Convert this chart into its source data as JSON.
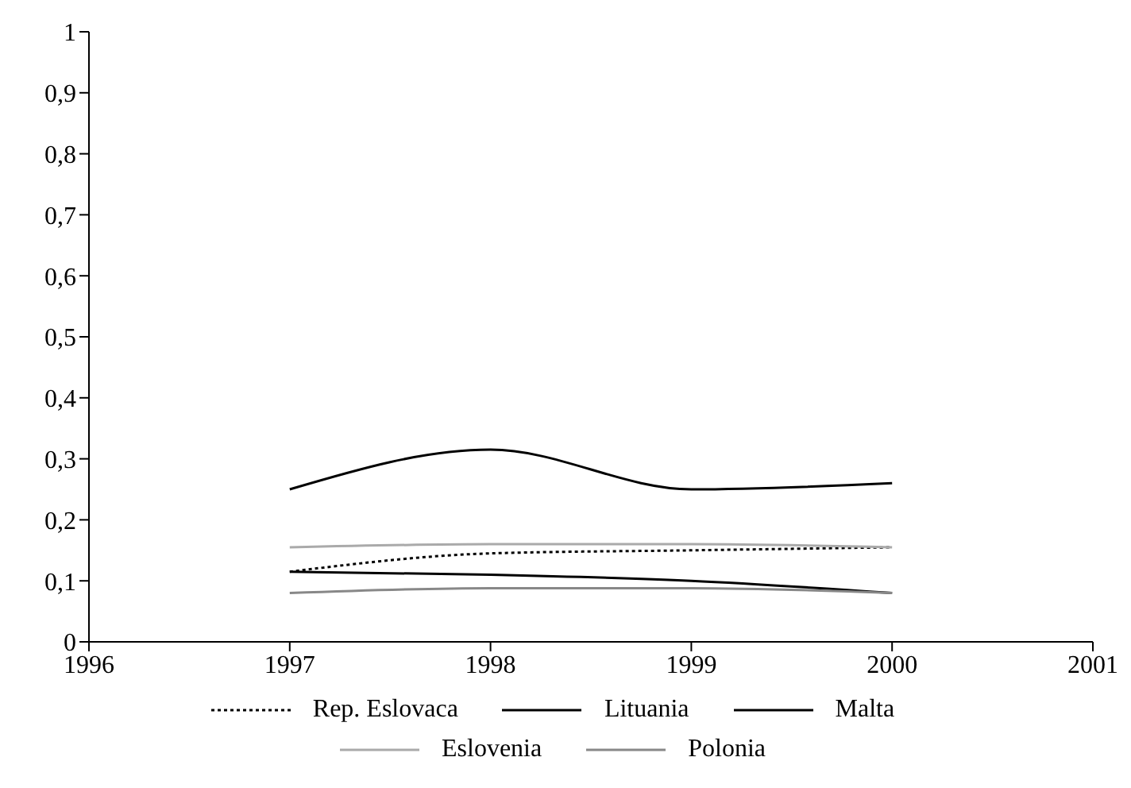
{
  "chart_data": {
    "type": "line",
    "x": [
      1997,
      1998,
      1999,
      2000
    ],
    "series": [
      {
        "name": "Rep. Eslovaca",
        "color": "#000000",
        "line_style": "dotted",
        "values": [
          0.115,
          0.145,
          0.15,
          0.155
        ]
      },
      {
        "name": "Lituania",
        "color": "#000000",
        "values": [
          0.115,
          0.11,
          0.1,
          0.08
        ]
      },
      {
        "name": "Malta",
        "color": "#000000",
        "values": [
          0.25,
          0.315,
          0.25,
          0.26
        ]
      },
      {
        "name": "Eslovenia",
        "color": "#aaaaaa",
        "values": [
          0.155,
          0.16,
          0.16,
          0.155
        ]
      },
      {
        "name": "Polonia",
        "color": "#888888",
        "values": [
          0.08,
          0.088,
          0.088,
          0.08
        ]
      }
    ],
    "xlim": [
      1996,
      2001
    ],
    "xticks": [
      1996,
      1997,
      1998,
      1999,
      2000,
      2001
    ],
    "ylim": [
      0,
      1
    ],
    "yticks": [
      0,
      {
        "value": 0.1,
        "label": "0,1"
      },
      {
        "value": 0.2,
        "label": "0,2"
      },
      {
        "value": 0.3,
        "label": "0,3"
      },
      {
        "value": 0.4,
        "label": "0,4"
      },
      {
        "value": 0.5,
        "label": "0,5"
      },
      {
        "value": 0.6,
        "label": "0,6"
      },
      {
        "value": 0.7,
        "label": "0,7"
      },
      {
        "value": 0.8,
        "label": "0,8"
      },
      {
        "value": 0.9,
        "label": "0,9"
      },
      1
    ],
    "grid": false,
    "legend": "bottom",
    "marker": "none",
    "line_style": "solid"
  }
}
